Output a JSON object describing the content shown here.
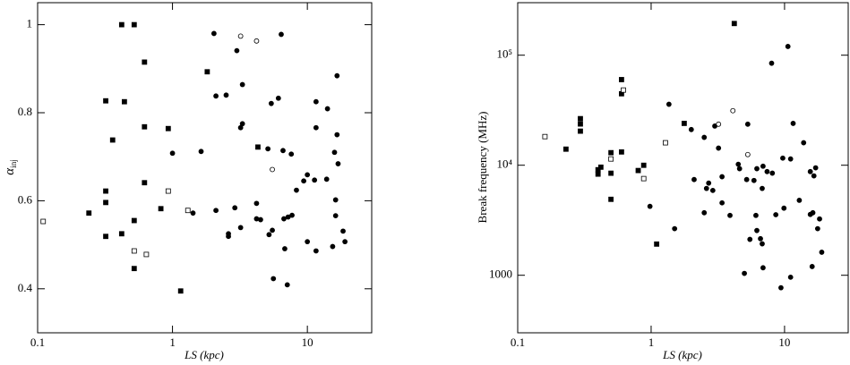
{
  "chart_data": [
    {
      "type": "scatter",
      "xlabel": "LS (kpc)",
      "ylabel": "α",
      "ylabel_subscript": "inj",
      "xscale": "log",
      "yscale": "linear",
      "xlim": [
        0.1,
        30
      ],
      "ylim": [
        0.3,
        1.05
      ],
      "xticks": [
        0.1,
        1,
        10
      ],
      "yticks": [
        0.4,
        0.6,
        0.8,
        1
      ],
      "series": [
        {
          "marker": "square",
          "filled": true,
          "color": "#000000",
          "x": [
            0.42,
            0.52,
            0.62,
            0.32,
            0.44,
            0.62,
            0.36,
            0.93,
            0.32,
            0.62,
            0.32,
            0.24,
            0.52,
            0.32,
            0.42,
            0.82,
            0.52,
            1.15,
            1.81,
            4.3
          ],
          "y": [
            1.0,
            1.0,
            0.915,
            0.827,
            0.825,
            0.768,
            0.738,
            0.764,
            0.622,
            0.641,
            0.596,
            0.572,
            0.555,
            0.519,
            0.525,
            0.582,
            0.446,
            0.395,
            0.893,
            0.722
          ]
        },
        {
          "marker": "square",
          "filled": false,
          "color": "#000000",
          "x": [
            0.11,
            0.52,
            0.64,
            0.93,
            1.3
          ],
          "y": [
            0.553,
            0.486,
            0.478,
            0.622,
            0.578
          ]
        },
        {
          "marker": "circle",
          "filled": true,
          "color": "#000000",
          "x": [
            2.03,
            3.0,
            6.4,
            2.1,
            2.5,
            3.3,
            3.2,
            3.3,
            5.4,
            6.1,
            11.6,
            14.1,
            16.6,
            16.6,
            11.6,
            1.63,
            1.0,
            5.1,
            6.6,
            7.6,
            15.9,
            16.9,
            10,
            9.4,
            11.3,
            13.9,
            8.3,
            16.2,
            4.2,
            2.9,
            2.1,
            1.42,
            4.2,
            4.5,
            6.7,
            7.2,
            7.7,
            5.5,
            5.2,
            2.6,
            2.6,
            3.2,
            6.8,
            10,
            11.6,
            15.4,
            19,
            18.4,
            16.2,
            5.6,
            7.1
          ],
          "y": [
            0.98,
            0.941,
            0.978,
            0.838,
            0.84,
            0.864,
            0.766,
            0.775,
            0.821,
            0.833,
            0.825,
            0.809,
            0.884,
            0.75,
            0.766,
            0.712,
            0.708,
            0.718,
            0.714,
            0.706,
            0.71,
            0.684,
            0.659,
            0.645,
            0.647,
            0.649,
            0.624,
            0.602,
            0.594,
            0.584,
            0.578,
            0.572,
            0.559,
            0.557,
            0.559,
            0.563,
            0.567,
            0.533,
            0.523,
            0.525,
            0.519,
            0.539,
            0.491,
            0.507,
            0.486,
            0.496,
            0.507,
            0.531,
            0.566,
            0.423,
            0.409
          ]
        },
        {
          "marker": "circle",
          "filled": false,
          "color": "#000000",
          "x": [
            3.2,
            4.2,
            5.5
          ],
          "y": [
            0.974,
            0.963,
            0.671
          ]
        }
      ]
    },
    {
      "type": "scatter",
      "xlabel": "LS (kpc)",
      "ylabel": "Break frequency (MHz)",
      "xscale": "log",
      "yscale": "log",
      "xlim": [
        0.1,
        30
      ],
      "ylim": [
        300,
        300000
      ],
      "xticks": [
        0.1,
        1,
        10
      ],
      "yticks": [
        1000,
        {
          "value": 10000,
          "label": "10⁴"
        },
        {
          "value": 100000,
          "label": "10⁵"
        }
      ],
      "series": [
        {
          "marker": "square",
          "filled": true,
          "color": "#000000",
          "x": [
            0.23,
            0.295,
            0.295,
            0.295,
            0.4,
            0.4,
            0.42,
            0.5,
            0.5,
            0.5,
            0.6,
            0.6,
            0.6,
            0.8,
            0.88,
            1.1,
            1.77,
            4.2
          ],
          "y": [
            14000,
            26500,
            23700,
            20400,
            9100,
            8300,
            9600,
            13000,
            8460,
            4900,
            60000,
            44600,
            13200,
            8950,
            9990,
            1920,
            24000,
            194000
          ]
        },
        {
          "marker": "square",
          "filled": false,
          "color": "#000000",
          "x": [
            0.16,
            0.62,
            0.5,
            0.88,
            1.28
          ],
          "y": [
            18200,
            48200,
            11400,
            7560,
            16000
          ]
        },
        {
          "marker": "circle",
          "filled": true,
          "color": "#000000",
          "x": [
            10.6,
            8.0,
            1.36,
            2.0,
            2.5,
            3.0,
            3.2,
            5.3,
            11.6,
            13.9,
            15.6,
            16.6,
            17.1,
            9.7,
            11.1,
            4.6,
            4.5,
            6.2,
            7.4,
            6.9,
            8.1,
            2.1,
            2.7,
            2.6,
            2.9,
            3.4,
            5.2,
            5.9,
            6.8,
            3.4,
            2.5,
            3.9,
            6.1,
            1.5,
            0.98,
            5.5,
            6.2,
            6.6,
            6.8,
            6.9,
            5.0,
            9.4,
            11.1,
            9.9,
            12.9,
            15.6,
            16.3,
            17.7,
            18.3,
            19,
            16.1,
            8.6
          ],
          "y": [
            120000,
            84500,
            35800,
            21100,
            17900,
            22700,
            14300,
            23600,
            24000,
            16000,
            8750,
            8000,
            9470,
            11600,
            11400,
            9300,
            10200,
            9300,
            8750,
            9800,
            8470,
            7410,
            6880,
            6150,
            5900,
            7860,
            7410,
            7270,
            6150,
            4550,
            3700,
            3500,
            3500,
            2650,
            4230,
            2120,
            2550,
            2150,
            1930,
            1170,
            1040,
            770,
            960,
            4070,
            4800,
            3570,
            3700,
            2650,
            3250,
            1620,
            1200,
            3550
          ]
        },
        {
          "marker": "circle",
          "filled": false,
          "color": "#000000",
          "x": [
            3.2,
            4.1,
            5.3
          ],
          "y": [
            23600,
            31300,
            12500
          ]
        }
      ]
    }
  ]
}
